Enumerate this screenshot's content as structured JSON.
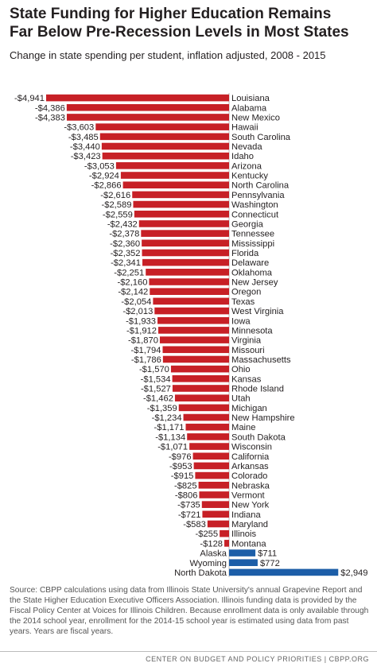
{
  "title": "State Funding for Higher Education Remains\nFar Below Pre-Recession Levels in Most States",
  "subtitle": "Change in state spending per student, inflation adjusted, 2008 - 2015",
  "source_note": "Source: CBPP calculations using data from Illinois State University's annual Grapevine Report and the State Higher Education Executive Officers Association.  Illinois funding data is provided by the Fiscal Policy Center at Voices for Illinois Children.  Because enrollment data is only available through the 2014 school year, enrollment for the 2014-15 school year is estimated using data from past years. Years are fiscal years.",
  "footer": "CENTER ON BUDGET AND POLICY PRIORITIES | CBPP.ORG",
  "colors": {
    "negative": "#c72026",
    "positive": "#1c5ea8",
    "text": "#231f20",
    "baseline": "#b0b0b0"
  },
  "chart_data": {
    "type": "bar",
    "orientation": "horizontal",
    "title": "State Funding for Higher Education Remains Far Below Pre-Recession Levels in Most States",
    "subtitle": "Change in state spending per student, inflation adjusted, 2008 - 2015",
    "xlim": [
      -4941,
      2949
    ],
    "grid": false,
    "categories": [
      "Louisiana",
      "Alabama",
      "New Mexico",
      "Hawaii",
      "South Carolina",
      "Nevada",
      "Idaho",
      "Arizona",
      "Kentucky",
      "North Carolina",
      "Pennsylvania",
      "Washington",
      "Connecticut",
      "Georgia",
      "Tennessee",
      "Mississippi",
      "Florida",
      "Delaware",
      "Oklahoma",
      "New Jersey",
      "Oregon",
      "Texas",
      "West Virginia",
      "Iowa",
      "Minnesota",
      "Virginia",
      "Missouri",
      "Massachusetts",
      "Ohio",
      "Kansas",
      "Rhode Island",
      "Utah",
      "Michigan",
      "New Hampshire",
      "Maine",
      "South Dakota",
      "Wisconsin",
      "California",
      "Arkansas",
      "Colorado",
      "Nebraska",
      "Vermont",
      "New York",
      "Indiana",
      "Maryland",
      "Illinois",
      "Montana",
      "Alaska",
      "Wyoming",
      "North Dakota"
    ],
    "values": [
      -4941,
      -4386,
      -4383,
      -3603,
      -3485,
      -3440,
      -3423,
      -3053,
      -2924,
      -2866,
      -2616,
      -2589,
      -2559,
      -2432,
      -2378,
      -2360,
      -2352,
      -2341,
      -2251,
      -2160,
      -2142,
      -2054,
      -2013,
      -1933,
      -1912,
      -1870,
      -1794,
      -1786,
      -1570,
      -1534,
      -1527,
      -1462,
      -1359,
      -1234,
      -1171,
      -1134,
      -1071,
      -976,
      -953,
      -915,
      -825,
      -806,
      -735,
      -721,
      -583,
      -255,
      -128,
      711,
      772,
      2949
    ],
    "value_labels": [
      "-$4,941",
      "-$4,386",
      "-$4,383",
      "-$3,603",
      "-$3,485",
      "-$3,440",
      "-$3,423",
      "-$3,053",
      "-$2,924",
      "-$2,866",
      "-$2,616",
      "-$2,589",
      "-$2,559",
      "-$2,432",
      "-$2,378",
      "-$2,360",
      "-$2,352",
      "-$2,341",
      "-$2,251",
      "-$2,160",
      "-$2,142",
      "-$2,054",
      "-$2,013",
      "-$1,933",
      "-$1,912",
      "-$1,870",
      "-$1,794",
      "-$1,786",
      "-$1,570",
      "-$1,534",
      "-$1,527",
      "-$1,462",
      "-$1,359",
      "-$1,234",
      "-$1,171",
      "-$1,134",
      "-$1,071",
      "-$976",
      "-$953",
      "-$915",
      "-$825",
      "-$806",
      "-$735",
      "-$721",
      "-$583",
      "-$255",
      "-$128",
      "$711",
      "$772",
      "$2,949"
    ]
  }
}
